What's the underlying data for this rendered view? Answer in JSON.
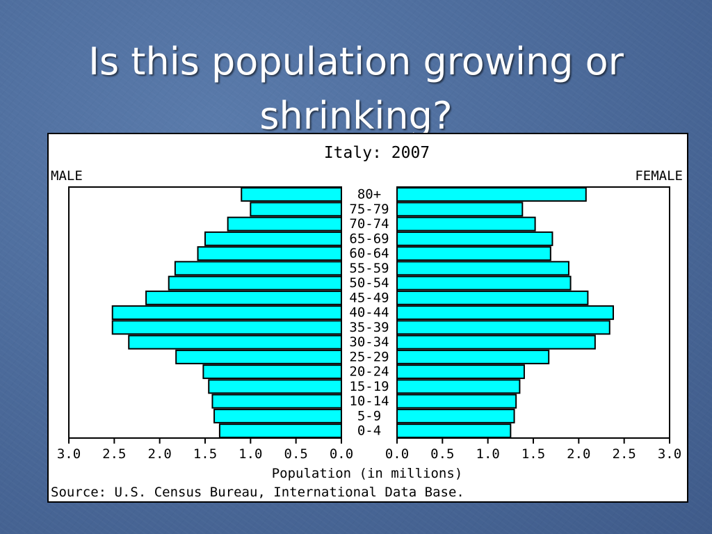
{
  "slide": {
    "title_line1": "Is this population growing or",
    "title_line2": "shrinking?"
  },
  "chart_data": {
    "type": "bar",
    "orientation": "horizontal",
    "subtype": "population-pyramid",
    "title": "Italy: 2007",
    "left_label": "MALE",
    "right_label": "FEMALE",
    "xlabel": "Population (in millions)",
    "source": "Source: U.S. Census Bureau, International Data Base.",
    "xlim": [
      0,
      3.0
    ],
    "ticks": [
      "0.0",
      "0.5",
      "1.0",
      "1.5",
      "2.0",
      "2.5",
      "3.0"
    ],
    "bar_color": "#00ffff",
    "categories": [
      "80+",
      "75-79",
      "70-74",
      "65-69",
      "60-64",
      "55-59",
      "50-54",
      "45-49",
      "40-44",
      "35-39",
      "30-34",
      "25-29",
      "20-24",
      "15-19",
      "10-14",
      "5-9",
      "0-4"
    ],
    "series": [
      {
        "name": "MALE",
        "values": [
          1.1,
          1.0,
          1.25,
          1.5,
          1.58,
          1.83,
          1.9,
          2.15,
          2.52,
          2.52,
          2.34,
          1.82,
          1.52,
          1.46,
          1.42,
          1.4,
          1.34
        ]
      },
      {
        "name": "FEMALE",
        "values": [
          2.08,
          1.38,
          1.52,
          1.71,
          1.69,
          1.89,
          1.91,
          2.1,
          2.38,
          2.34,
          2.18,
          1.67,
          1.4,
          1.35,
          1.31,
          1.29,
          1.25
        ]
      }
    ]
  }
}
